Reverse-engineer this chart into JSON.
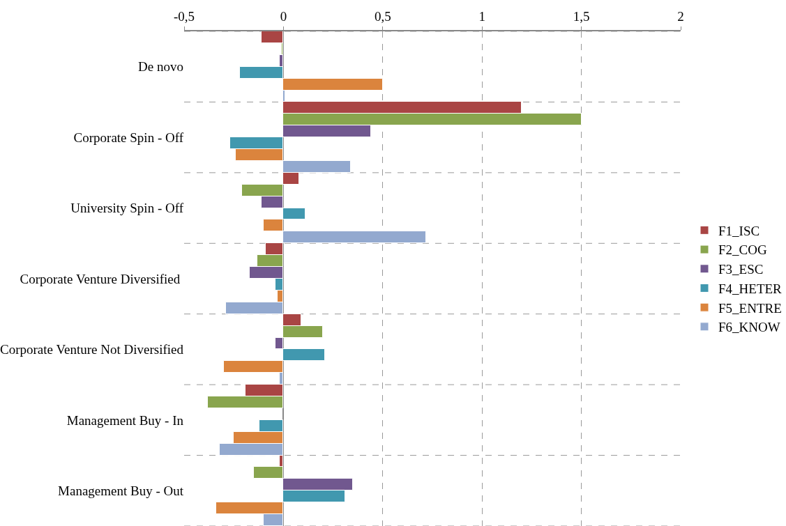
{
  "chart_data": {
    "type": "bar",
    "orientation": "horizontal",
    "categories": [
      "De novo",
      "Corporate Spin - Off",
      "University Spin - Off",
      "Corporate Venture Diversified ",
      "Corporate Venture Not Diversified",
      "Management Buy - In",
      "Management Buy - Out"
    ],
    "series": [
      {
        "name": "F1_ISC",
        "color": "#a94544",
        "values": [
          -0.11,
          1.2,
          0.08,
          -0.09,
          0.09,
          -0.19,
          -0.02
        ]
      },
      {
        "name": "F2_COG",
        "color": "#89a54e",
        "values": [
          -0.01,
          1.5,
          -0.21,
          -0.13,
          0.2,
          -0.38,
          -0.15
        ]
      },
      {
        "name": "F3_ESC",
        "color": "#71588f",
        "values": [
          -0.02,
          0.44,
          -0.11,
          -0.17,
          -0.04,
          null,
          0.35
        ]
      },
      {
        "name": "F4_HETER",
        "color": "#4198af",
        "values": [
          -0.22,
          -0.27,
          0.11,
          -0.04,
          0.21,
          -0.12,
          0.31
        ]
      },
      {
        "name": "F5_ENTRE",
        "color": "#db843d",
        "values": [
          0.5,
          -0.24,
          -0.1,
          -0.03,
          -0.3,
          -0.25,
          -0.34
        ]
      },
      {
        "name": "F6_KNOW",
        "color": "#93a9cf",
        "values": [
          0.01,
          0.34,
          0.72,
          -0.29,
          -0.02,
          -0.32,
          -0.1
        ]
      }
    ],
    "xlim": [
      -0.5,
      2
    ],
    "xticks": [
      {
        "value": -0.5,
        "label": "-0,5"
      },
      0,
      {
        "value": 0.5,
        "label": "0,5"
      },
      1,
      {
        "value": 1.5,
        "label": "1,5"
      },
      2
    ],
    "grid": true,
    "legend": "right"
  }
}
